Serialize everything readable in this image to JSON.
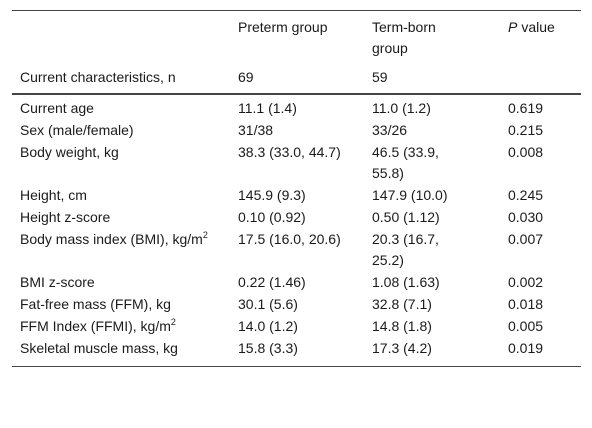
{
  "table": {
    "header": {
      "preterm": "Preterm group",
      "term": "Term-born group",
      "p_value": {
        "italic": "P",
        "text": "value"
      }
    },
    "count_row": {
      "label": "Current characteristics, n",
      "preterm": "69",
      "term": "59"
    },
    "rows": [
      [
        "Current age",
        "11.1 (1.4)",
        "11.0 (1.2)",
        "0.619"
      ],
      [
        "Sex (male/female)",
        "31/38",
        "33/26",
        "0.215"
      ],
      [
        "Body weight, kg",
        "38.3 (33.0, 44.7)",
        "46.5 (33.9, 55.8)",
        "0.008"
      ],
      [
        "Height, cm",
        "145.9 (9.3)",
        "147.9 (10.0)",
        "0.245"
      ],
      [
        "Height z-score",
        "0.10 (0.92)",
        "0.50 (1.12)",
        "0.030"
      ],
      [
        {
          "text": "Body mass index (BMI), kg/m",
          "sup": "2"
        },
        "17.5 (16.0, 20.6)",
        "20.3 (16.7, 25.2)",
        "0.007"
      ],
      [
        "BMI z-score",
        "0.22 (1.46)",
        "1.08 (1.63)",
        "0.002"
      ],
      [
        "Fat-free mass (FFM), kg",
        "30.1 (5.6)",
        "32.8 (7.1)",
        "0.018"
      ],
      [
        {
          "text": "FFM Index (FFMI), kg/m",
          "sup": "2"
        },
        "14.0 (1.2)",
        "14.8 (1.8)",
        "0.005"
      ],
      [
        "Skeletal muscle mass, kg",
        "15.8 (3.3)",
        "17.3 (4.2)",
        "0.019"
      ]
    ]
  }
}
